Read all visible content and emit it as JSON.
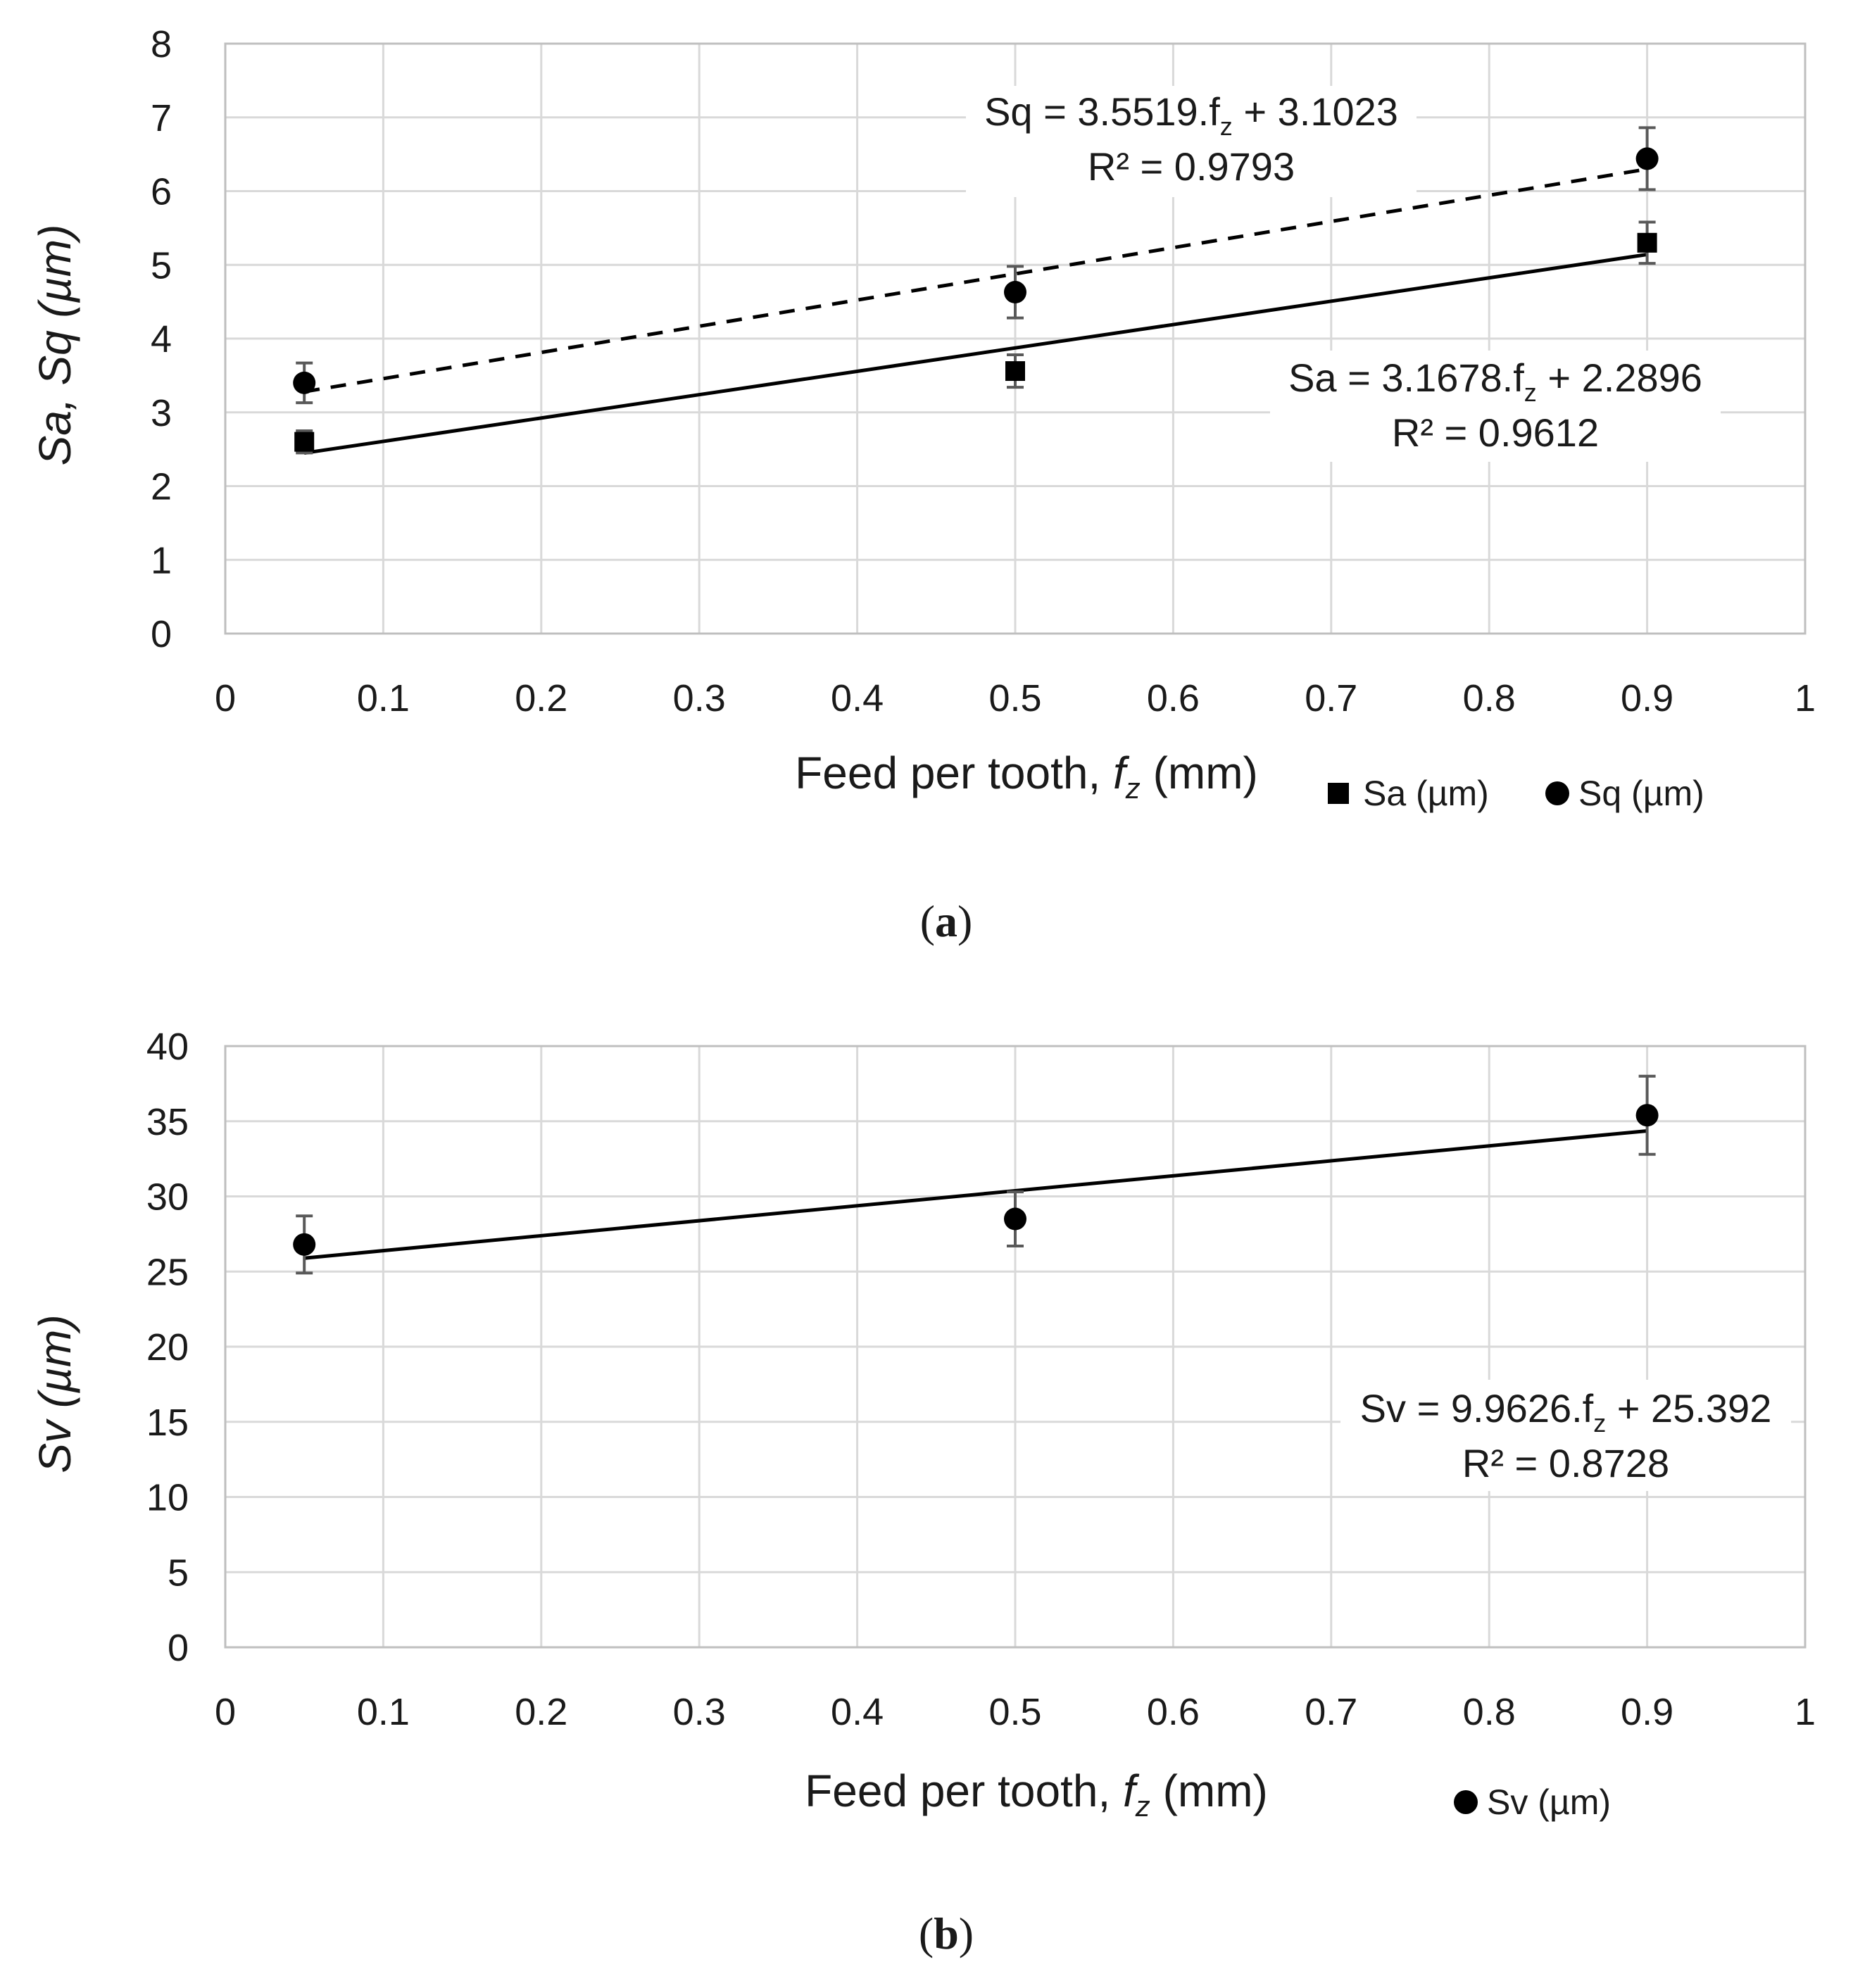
{
  "chart_data": [
    {
      "type": "scatter",
      "panel_label": "a",
      "xlabel": "Feed per tooth, ",
      "xlabel_var": "f",
      "xlabel_sub": "z",
      "xlabel_unit": " (mm)",
      "ylabel": "Sa, Sq (µm)",
      "xlim": [
        0,
        1
      ],
      "ylim": [
        0,
        8
      ],
      "xticks": [
        "0",
        "0.1",
        "0.2",
        "0.3",
        "0.4",
        "0.5",
        "0.6",
        "0.7",
        "0.8",
        "0.9",
        "1"
      ],
      "yticks": [
        "0",
        "1",
        "2",
        "3",
        "4",
        "5",
        "6",
        "7",
        "8"
      ],
      "grid": true,
      "legend_position": "bottom-right",
      "series": [
        {
          "name": "Sa (µm)",
          "marker": "square",
          "x": [
            0.05,
            0.5,
            0.9
          ],
          "y": [
            2.6,
            3.56,
            5.3
          ],
          "error": [
            0.15,
            0.22,
            0.28
          ],
          "trendline": {
            "slope": 3.1678,
            "intercept": 2.2896,
            "style": "solid"
          },
          "equation": "Sa = 3.1678.f",
          "equation_sub": "z",
          "equation_tail": " + 2.2896",
          "r2": "R² = 0.9612"
        },
        {
          "name": "Sq (µm)",
          "marker": "circle",
          "x": [
            0.05,
            0.5,
            0.9
          ],
          "y": [
            3.4,
            4.63,
            6.44
          ],
          "error": [
            0.27,
            0.35,
            0.42
          ],
          "trendline": {
            "slope": 3.5519,
            "intercept": 3.1023,
            "style": "dashed"
          },
          "equation": "Sq = 3.5519.f",
          "equation_sub": "z",
          "equation_tail": " + 3.1023",
          "r2": "R² = 0.9793"
        }
      ]
    },
    {
      "type": "scatter",
      "panel_label": "b",
      "xlabel": "Feed per tooth, ",
      "xlabel_var": "f",
      "xlabel_sub": "z",
      "xlabel_unit": " (mm)",
      "ylabel": "Sv (µm)",
      "xlim": [
        0,
        1
      ],
      "ylim": [
        0,
        40
      ],
      "xticks": [
        "0",
        "0.1",
        "0.2",
        "0.3",
        "0.4",
        "0.5",
        "0.6",
        "0.7",
        "0.8",
        "0.9",
        "1"
      ],
      "yticks": [
        "0",
        "5",
        "10",
        "15",
        "20",
        "25",
        "30",
        "35",
        "40"
      ],
      "grid": true,
      "legend_position": "bottom-right",
      "series": [
        {
          "name": "Sv (µm)",
          "marker": "circle",
          "x": [
            0.05,
            0.5,
            0.9
          ],
          "y": [
            26.8,
            28.5,
            35.4
          ],
          "error": [
            1.9,
            1.8,
            2.6
          ],
          "trendline": {
            "slope": 9.9626,
            "intercept": 25.392,
            "style": "solid"
          },
          "equation": "Sv = 9.9626.f",
          "equation_sub": "z",
          "equation_tail": " + 25.392",
          "r2": "R² = 0.8728"
        }
      ]
    }
  ]
}
